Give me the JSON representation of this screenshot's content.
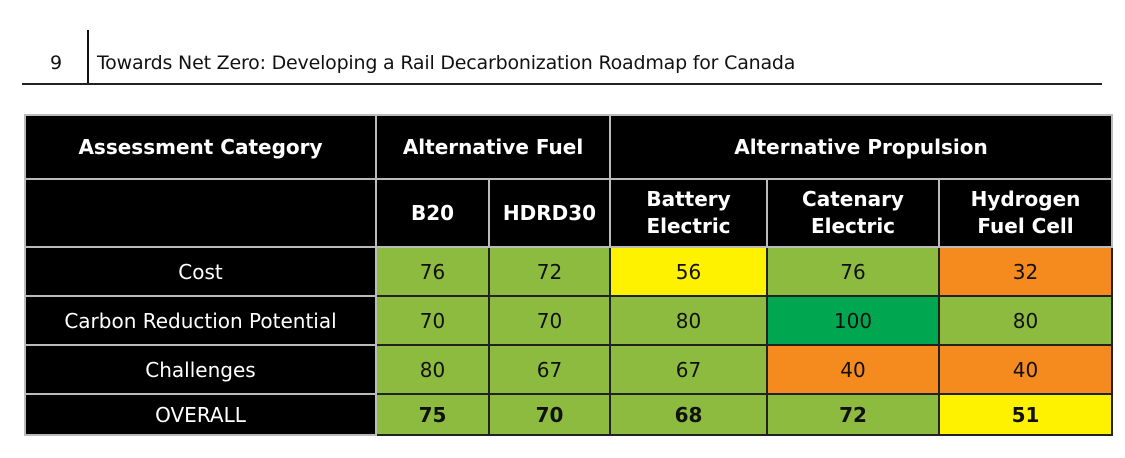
{
  "header": {
    "page_number": "9",
    "title": "Towards Net Zero: Developing a Rail Decarbonization Roadmap for Canada"
  },
  "table": {
    "group_headers": [
      "Assessment Category",
      "Alternative Fuel",
      "Alternative Propulsion"
    ],
    "columns": [
      [
        "B20"
      ],
      [
        "HDRD30"
      ],
      [
        "Battery",
        "Electric"
      ],
      [
        "Catenary",
        "Electric"
      ],
      [
        "Hydrogen",
        "Fuel Cell"
      ]
    ],
    "rows": [
      {
        "label": "Cost",
        "values": [
          "76",
          "72",
          "56",
          "76",
          "32"
        ],
        "colors": [
          "#8dbb3f",
          "#8dbb3f",
          "#fff200",
          "#8dbb3f",
          "#f58a1f"
        ]
      },
      {
        "label": "Carbon Reduction Potential",
        "values": [
          "70",
          "70",
          "80",
          "100",
          "80"
        ],
        "colors": [
          "#8dbb3f",
          "#8dbb3f",
          "#8dbb3f",
          "#00a650",
          "#8dbb3f"
        ]
      },
      {
        "label": "Challenges",
        "values": [
          "80",
          "67",
          "67",
          "40",
          "40"
        ],
        "colors": [
          "#8dbb3f",
          "#8dbb3f",
          "#8dbb3f",
          "#f58a1f",
          "#f58a1f"
        ]
      },
      {
        "label": "OVERALL",
        "values": [
          "75",
          "70",
          "68",
          "72",
          "51"
        ],
        "colors": [
          "#8dbb3f",
          "#8dbb3f",
          "#8dbb3f",
          "#8dbb3f",
          "#fff200"
        ]
      }
    ]
  }
}
